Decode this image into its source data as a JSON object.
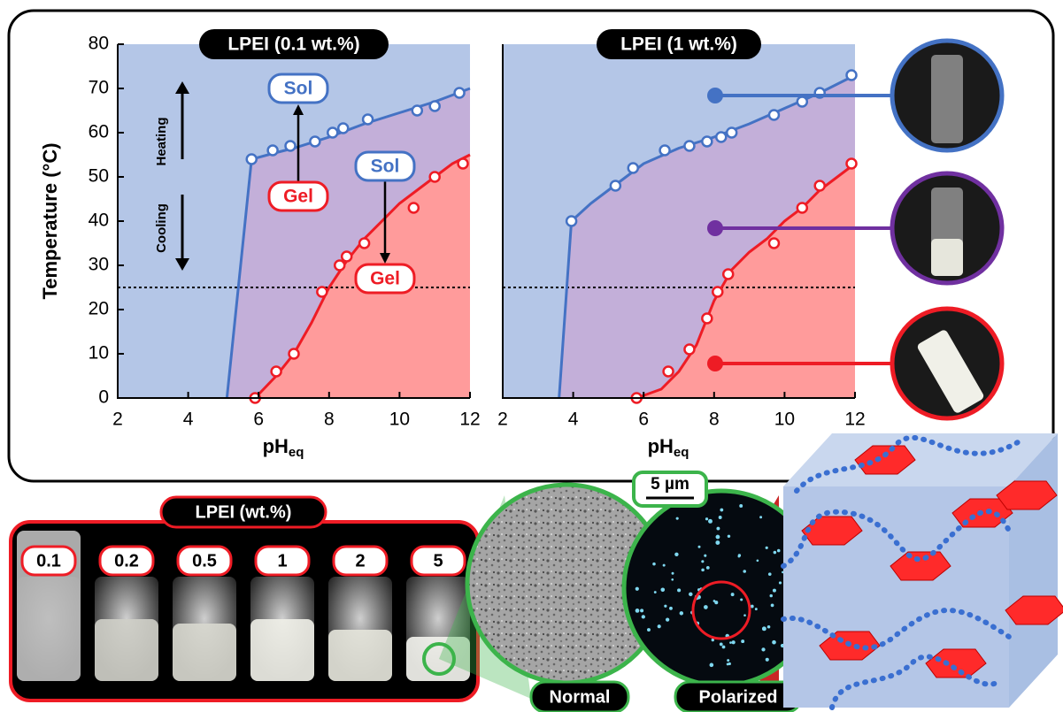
{
  "chart_data": [
    {
      "type": "line",
      "title": "LPEI (0.1 wt.%)",
      "ylabel": "Temperature (°C)",
      "xlabel": "pH",
      "xlabel_sub": "eq",
      "xlim": [
        2,
        12
      ],
      "xticks": [
        2,
        4,
        6,
        8,
        10,
        12
      ],
      "ylim": [
        0,
        80
      ],
      "yticks": [
        0,
        10,
        20,
        30,
        40,
        50,
        60,
        70,
        80
      ],
      "plot_background": "#b4c6e7",
      "hline": 25,
      "annotations": [
        "Heating",
        "Cooling",
        "Sol",
        "Gel",
        "Sol",
        "Gel"
      ],
      "series": [
        {
          "mode": "line",
          "color": "#4472c4",
          "fill": "#c3afd9",
          "x": [
            5.1,
            5.8,
            6.5,
            7,
            8,
            9,
            10,
            11,
            12
          ],
          "values": [
            0,
            54,
            55.5,
            56.5,
            59,
            62,
            64.5,
            67,
            70
          ]
        },
        {
          "mode": "line",
          "color": "#ee1c25",
          "fill": "#ff9b9b",
          "x": [
            5.9,
            6.5,
            7,
            7.5,
            8,
            8.5,
            9,
            9.5,
            10,
            10.5,
            11,
            11.5,
            12
          ],
          "values": [
            0,
            5,
            10,
            17,
            25,
            31,
            36,
            40,
            44,
            47,
            50,
            53,
            55
          ]
        },
        {
          "mode": "markers",
          "color": "#4472c4",
          "x": [
            5.8,
            6.4,
            6.9,
            7.6,
            8.1,
            8.4,
            9.1,
            10.5,
            11,
            11.7
          ],
          "values": [
            54,
            56,
            57,
            58,
            60,
            61,
            63,
            65,
            66,
            69
          ]
        },
        {
          "mode": "markers",
          "color": "#ee1c25",
          "x": [
            5.9,
            6.5,
            7,
            7.8,
            8.3,
            8.5,
            9,
            10.4,
            11,
            11.8
          ],
          "values": [
            0,
            6,
            10,
            24,
            30,
            32,
            35,
            43,
            50,
            53
          ]
        }
      ]
    },
    {
      "type": "line",
      "title": "LPEI (1 wt.%)",
      "xlabel": "pH",
      "xlabel_sub": "eq",
      "xlim": [
        2,
        12
      ],
      "xticks": [
        2,
        4,
        6,
        8,
        10,
        12
      ],
      "ylim": [
        0,
        80
      ],
      "plot_background": "#b4c6e7",
      "hline": 25,
      "series": [
        {
          "mode": "line",
          "color": "#4472c4",
          "fill": "#c3afd9",
          "x": [
            3.6,
            3.95,
            4.5,
            5,
            5.5,
            6,
            7,
            8,
            9,
            10,
            11,
            12
          ],
          "values": [
            0,
            40,
            44,
            47,
            50,
            53,
            56.5,
            59,
            62,
            65.5,
            69,
            73
          ]
        },
        {
          "mode": "line",
          "color": "#ee1c25",
          "fill": "#ff9b9b",
          "x": [
            5.8,
            6.5,
            7,
            7.5,
            8,
            8.5,
            9,
            9.5,
            10,
            10.5,
            11,
            11.5,
            12
          ],
          "values": [
            0,
            2,
            6,
            12,
            22,
            29,
            33,
            36,
            40,
            43,
            47,
            50,
            53
          ]
        },
        {
          "mode": "markers",
          "color": "#4472c4",
          "x": [
            3.95,
            5.2,
            5.7,
            6.6,
            7.3,
            7.8,
            8.2,
            8.5,
            9.7,
            10.5,
            11,
            11.9
          ],
          "values": [
            40,
            48,
            52,
            56,
            57,
            58,
            59,
            60,
            64,
            67,
            69,
            73
          ]
        },
        {
          "mode": "markers",
          "color": "#ee1c25",
          "x": [
            5.8,
            6.7,
            7.3,
            7.8,
            8.1,
            8.4,
            9.7,
            10.5,
            11,
            11.9
          ],
          "values": [
            0,
            6,
            11,
            18,
            24,
            28,
            35,
            43,
            48,
            53
          ]
        }
      ]
    }
  ],
  "vials": {
    "title": "LPEI (wt.%)",
    "labels": [
      "0.1",
      "0.2",
      "0.5",
      "1",
      "2",
      "5"
    ]
  },
  "micrographs": {
    "scale_bar": "5 µm",
    "labels": [
      "Normal",
      "Polarized"
    ]
  }
}
